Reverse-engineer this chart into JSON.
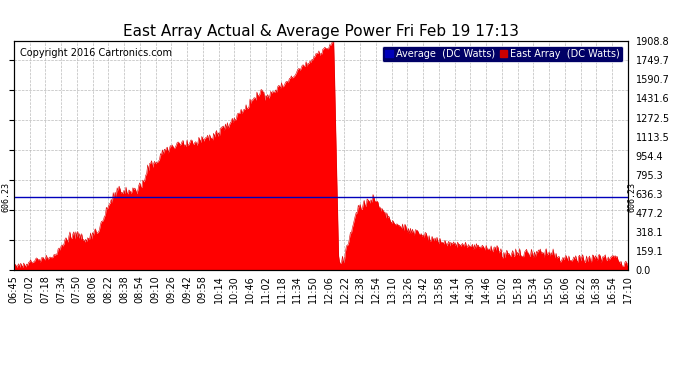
{
  "title": "East Array Actual & Average Power Fri Feb 19 17:13",
  "copyright": "Copyright 2016 Cartronics.com",
  "ylabel_right_values": [
    0.0,
    159.1,
    318.1,
    477.2,
    636.3,
    795.3,
    954.4,
    1113.5,
    1272.5,
    1431.6,
    1590.7,
    1749.7,
    1908.8
  ],
  "ymax": 1908.8,
  "ymin": 0.0,
  "average_line_value": 606.23,
  "average_line_label": "606.23",
  "legend_average_label": "Average  (DC Watts)",
  "legend_east_label": "East Array  (DC Watts)",
  "legend_average_color": "#0000bb",
  "legend_east_color": "#cc0000",
  "fill_color": "#ff0000",
  "line_color": "#dd0000",
  "average_line_color": "#0000bb",
  "background_color": "#ffffff",
  "grid_color": "#aaaaaa",
  "title_fontsize": 11,
  "copyright_fontsize": 7,
  "tick_fontsize": 7,
  "x_tick_labels": [
    "06:45",
    "07:02",
    "07:18",
    "07:34",
    "07:50",
    "08:06",
    "08:22",
    "08:38",
    "08:54",
    "09:10",
    "09:26",
    "09:42",
    "09:58",
    "10:14",
    "10:30",
    "10:46",
    "11:02",
    "11:18",
    "11:34",
    "11:50",
    "12:06",
    "12:22",
    "12:38",
    "12:54",
    "13:10",
    "13:26",
    "13:42",
    "13:58",
    "14:14",
    "14:30",
    "14:46",
    "15:02",
    "15:18",
    "15:34",
    "15:50",
    "16:06",
    "16:22",
    "16:38",
    "16:54",
    "17:10"
  ]
}
